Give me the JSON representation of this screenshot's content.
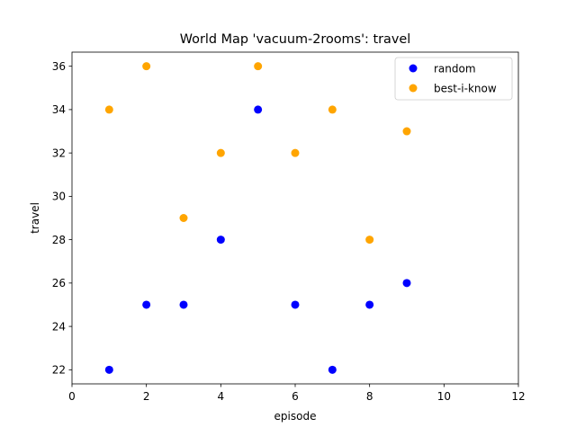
{
  "chart_data": {
    "type": "scatter",
    "title": "World Map 'vacuum-2rooms': travel",
    "xlabel": "episode",
    "ylabel": "travel",
    "xlim": [
      0,
      12
    ],
    "ylim": [
      21.35,
      36.65
    ],
    "xticks": [
      0,
      2,
      4,
      6,
      8,
      10,
      12
    ],
    "yticks": [
      22,
      24,
      26,
      28,
      30,
      32,
      34,
      36
    ],
    "grid": false,
    "legend": "top-right",
    "series": [
      {
        "name": "random",
        "color": "#0000ff",
        "points": [
          [
            1,
            22
          ],
          [
            2,
            25
          ],
          [
            3,
            25
          ],
          [
            4,
            28
          ],
          [
            5,
            34
          ],
          [
            6,
            25
          ],
          [
            7,
            22
          ],
          [
            8,
            25
          ],
          [
            9,
            26
          ]
        ]
      },
      {
        "name": "best-i-know",
        "color": "#ffa500",
        "points": [
          [
            1,
            34
          ],
          [
            2,
            36
          ],
          [
            3,
            29
          ],
          [
            4,
            32
          ],
          [
            5,
            36
          ],
          [
            6,
            32
          ],
          [
            7,
            34
          ],
          [
            8,
            28
          ],
          [
            9,
            33
          ]
        ]
      }
    ]
  }
}
